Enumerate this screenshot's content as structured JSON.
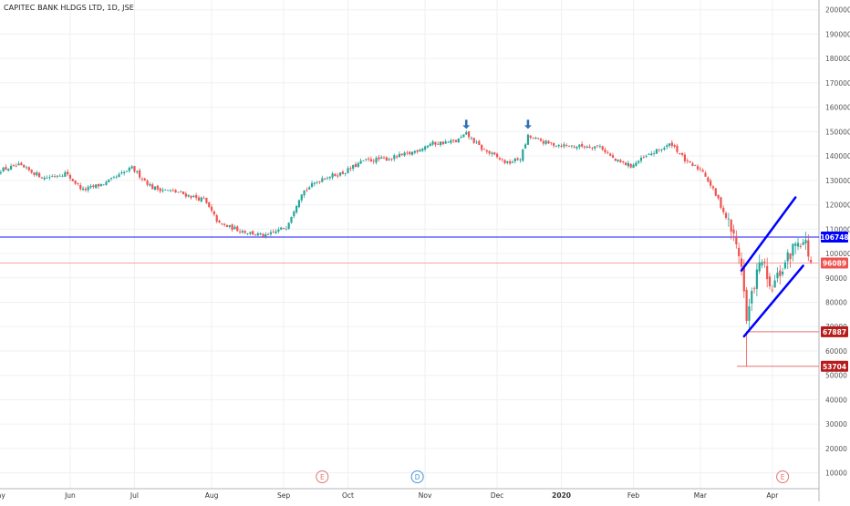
{
  "chart_data": {
    "type": "candlestick",
    "title": "CAPITEC BANK HLDGS LTD, 1D, JSE",
    "x_labels": [
      "May",
      "Jun",
      "Jul",
      "Aug",
      "Sep",
      "Oct",
      "Nov",
      "Dec",
      "2020",
      "Feb",
      "Mar",
      "Apr"
    ],
    "y_ticks": [
      10000,
      20000,
      30000,
      40000,
      50000,
      60000,
      70000,
      80000,
      90000,
      100000,
      110000,
      120000,
      130000,
      140000,
      150000,
      160000,
      170000,
      180000,
      190000,
      200000
    ],
    "ylim": [
      5000,
      204000
    ],
    "grid": true,
    "up_color": "#26a69a",
    "down_color": "#ef5350",
    "price_labels": [
      {
        "label": "106748",
        "value": 106748,
        "color": "#0000ff"
      },
      {
        "label": "96089",
        "value": 96089,
        "color": "#ef5350"
      },
      {
        "label": "67887",
        "value": 67887,
        "color": "#b71c1c"
      },
      {
        "label": "53704",
        "value": 53704,
        "color": "#b71c1c"
      }
    ],
    "event_markers": [
      {
        "label": "E",
        "date_index": 126
      },
      {
        "label": "D",
        "date_index": 163
      },
      {
        "label": "E",
        "date_index": 305
      }
    ],
    "peak_arrows": [
      {
        "date_index": 182,
        "value": 150000
      },
      {
        "date_index": 206,
        "value": 150000
      }
    ],
    "trend_channel": {
      "upper": [
        {
          "date_index": 289,
          "value": 93000
        },
        {
          "date_index": 310,
          "value": 123000
        }
      ],
      "lower": [
        {
          "date_index": 290,
          "value": 66000
        },
        {
          "date_index": 313,
          "value": 95000
        }
      ],
      "color": "#0000ff"
    },
    "close_path": [
      {
        "d": 0,
        "v": 134000
      },
      {
        "d": 8,
        "v": 136000
      },
      {
        "d": 18,
        "v": 131000
      },
      {
        "d": 26,
        "v": 133000
      },
      {
        "d": 33,
        "v": 126000
      },
      {
        "d": 42,
        "v": 129000
      },
      {
        "d": 52,
        "v": 135000
      },
      {
        "d": 60,
        "v": 127000
      },
      {
        "d": 70,
        "v": 125000
      },
      {
        "d": 80,
        "v": 122000
      },
      {
        "d": 86,
        "v": 112000
      },
      {
        "d": 96,
        "v": 109000
      },
      {
        "d": 104,
        "v": 107000
      },
      {
        "d": 112,
        "v": 111000
      },
      {
        "d": 118,
        "v": 125000
      },
      {
        "d": 126,
        "v": 131000
      },
      {
        "d": 134,
        "v": 133000
      },
      {
        "d": 142,
        "v": 138000
      },
      {
        "d": 152,
        "v": 139000
      },
      {
        "d": 160,
        "v": 141000
      },
      {
        "d": 168,
        "v": 145000
      },
      {
        "d": 178,
        "v": 146000
      },
      {
        "d": 182,
        "v": 149000
      },
      {
        "d": 188,
        "v": 143000
      },
      {
        "d": 198,
        "v": 137000
      },
      {
        "d": 203,
        "v": 139000
      },
      {
        "d": 206,
        "v": 148000
      },
      {
        "d": 214,
        "v": 145000
      },
      {
        "d": 224,
        "v": 144000
      },
      {
        "d": 234,
        "v": 144000
      },
      {
        "d": 240,
        "v": 138000
      },
      {
        "d": 246,
        "v": 136000
      },
      {
        "d": 254,
        "v": 141000
      },
      {
        "d": 262,
        "v": 145000
      },
      {
        "d": 268,
        "v": 137000
      },
      {
        "d": 274,
        "v": 134000
      },
      {
        "d": 280,
        "v": 122000
      },
      {
        "d": 285,
        "v": 110000
      },
      {
        "d": 289,
        "v": 96000
      },
      {
        "d": 291,
        "v": 72000
      },
      {
        "d": 294,
        "v": 88000
      },
      {
        "d": 297,
        "v": 98000
      },
      {
        "d": 300,
        "v": 84000
      },
      {
        "d": 304,
        "v": 92000
      },
      {
        "d": 308,
        "v": 100000
      },
      {
        "d": 311,
        "v": 106000
      },
      {
        "d": 314,
        "v": 104000
      },
      {
        "d": 316,
        "v": 96089
      }
    ]
  }
}
